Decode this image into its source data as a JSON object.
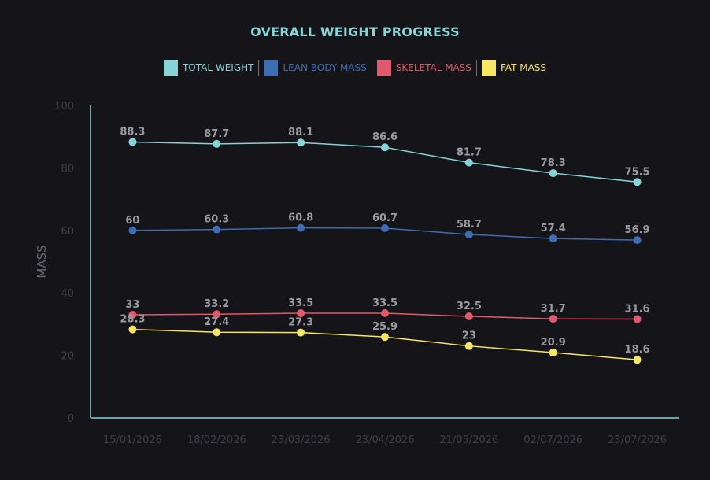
{
  "chart_data": {
    "type": "line",
    "title": "OVERALL WEIGHT PROGRESS",
    "xlabel": "",
    "ylabel": "MASS",
    "ylim": [
      0,
      100
    ],
    "yticks": [
      "0",
      "20",
      "40",
      "60",
      "80",
      "100"
    ],
    "categories": [
      "15/01/2026",
      "18/02/2026",
      "23/03/2026",
      "23/04/2026",
      "21/05/2026",
      "02/07/2026",
      "23/07/2026"
    ],
    "legend_position": "top-center",
    "grid": false,
    "series": [
      {
        "name": "TOTAL WEIGHT",
        "color": "#86d4d8",
        "values": [
          88.3,
          87.7,
          88.1,
          86.6,
          81.7,
          78.3,
          75.5
        ]
      },
      {
        "name": "LEAN BODY MASS",
        "color": "#3f6db3",
        "values": [
          60,
          60.3,
          60.8,
          60.7,
          58.7,
          57.4,
          56.9
        ]
      },
      {
        "name": "SKELETAL MASS",
        "color": "#e05a6d",
        "values": [
          33,
          33.2,
          33.5,
          33.5,
          32.5,
          31.7,
          31.6
        ]
      },
      {
        "name": "FAT MASS",
        "color": "#f7e762",
        "values": [
          28.3,
          27.4,
          27.3,
          25.9,
          23,
          20.9,
          18.6
        ]
      }
    ]
  }
}
